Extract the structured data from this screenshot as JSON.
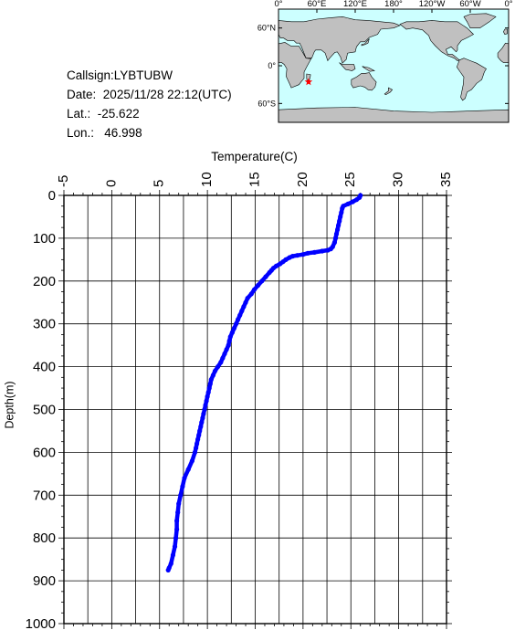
{
  "station": {
    "callsign_label": "Callsign:",
    "callsign": "LYBTUBW",
    "date_label": "Date:",
    "date": "2025/11/28 22:12(UTC)",
    "lat_label": "Lat.:",
    "lat": "-25.622",
    "lon_label": "Lon.:",
    "lon": "46.998"
  },
  "map": {
    "top_ticks": [
      "0°",
      "60°E",
      "120°E",
      "180°",
      "120°W",
      "60°W",
      "0°"
    ],
    "lat_ticks": [
      "60°N",
      "0°",
      "60°S"
    ],
    "ocean_color": "#ccffff",
    "land_color": "#c0c0c0",
    "marker_color": "#ff0000",
    "marker_icon": "star-icon"
  },
  "chart_data": {
    "type": "scatter",
    "xlabel": "Temperature(C)",
    "ylabel": "Depth(m)",
    "xlim": [
      -5,
      35
    ],
    "ylim": [
      1000,
      0
    ],
    "x_ticks": [
      -5,
      0,
      5,
      10,
      15,
      20,
      25,
      30,
      35
    ],
    "y_ticks": [
      0,
      100,
      200,
      300,
      400,
      500,
      600,
      700,
      800,
      900,
      1000
    ],
    "grid": true,
    "series_color": "#0000ff",
    "series": [
      {
        "depth": [
          0,
          5,
          10,
          15,
          20,
          25,
          30,
          40,
          50,
          60,
          70,
          80,
          90,
          100,
          110,
          120,
          125,
          128,
          130,
          133,
          135,
          138,
          140,
          142,
          145,
          150,
          155,
          160,
          165,
          170,
          175,
          180,
          190,
          200,
          210,
          220,
          230,
          240,
          250,
          260,
          270,
          280,
          290,
          300,
          310,
          320,
          330,
          340,
          350,
          360,
          370,
          380,
          390,
          400,
          410,
          420,
          430,
          440,
          450,
          460,
          470,
          480,
          490,
          500,
          510,
          520,
          530,
          540,
          550,
          560,
          570,
          580,
          590,
          600,
          620,
          640,
          660,
          680,
          700,
          720,
          740,
          760,
          780,
          800,
          820,
          840,
          860,
          870,
          875
        ],
        "temperature": [
          26.0,
          25.9,
          25.6,
          25.2,
          24.7,
          24.2,
          24.1,
          24.0,
          23.9,
          23.8,
          23.7,
          23.6,
          23.5,
          23.4,
          23.3,
          23.1,
          22.9,
          22.6,
          22.0,
          21.2,
          20.5,
          20.0,
          19.4,
          18.9,
          18.6,
          18.2,
          17.9,
          17.6,
          17.2,
          16.9,
          16.7,
          16.5,
          16.1,
          15.7,
          15.3,
          14.9,
          14.6,
          14.2,
          14.0,
          13.8,
          13.6,
          13.4,
          13.2,
          13.0,
          12.8,
          12.6,
          12.4,
          12.3,
          12.2,
          12.0,
          11.8,
          11.6,
          11.4,
          11.1,
          10.8,
          10.6,
          10.4,
          10.3,
          10.2,
          10.1,
          10.0,
          9.9,
          9.8,
          9.7,
          9.6,
          9.5,
          9.4,
          9.3,
          9.2,
          9.1,
          9.0,
          8.9,
          8.8,
          8.7,
          8.4,
          8.0,
          7.6,
          7.4,
          7.2,
          7.0,
          6.9,
          6.8,
          6.8,
          6.7,
          6.6,
          6.4,
          6.2,
          6.0,
          5.9
        ]
      }
    ]
  }
}
